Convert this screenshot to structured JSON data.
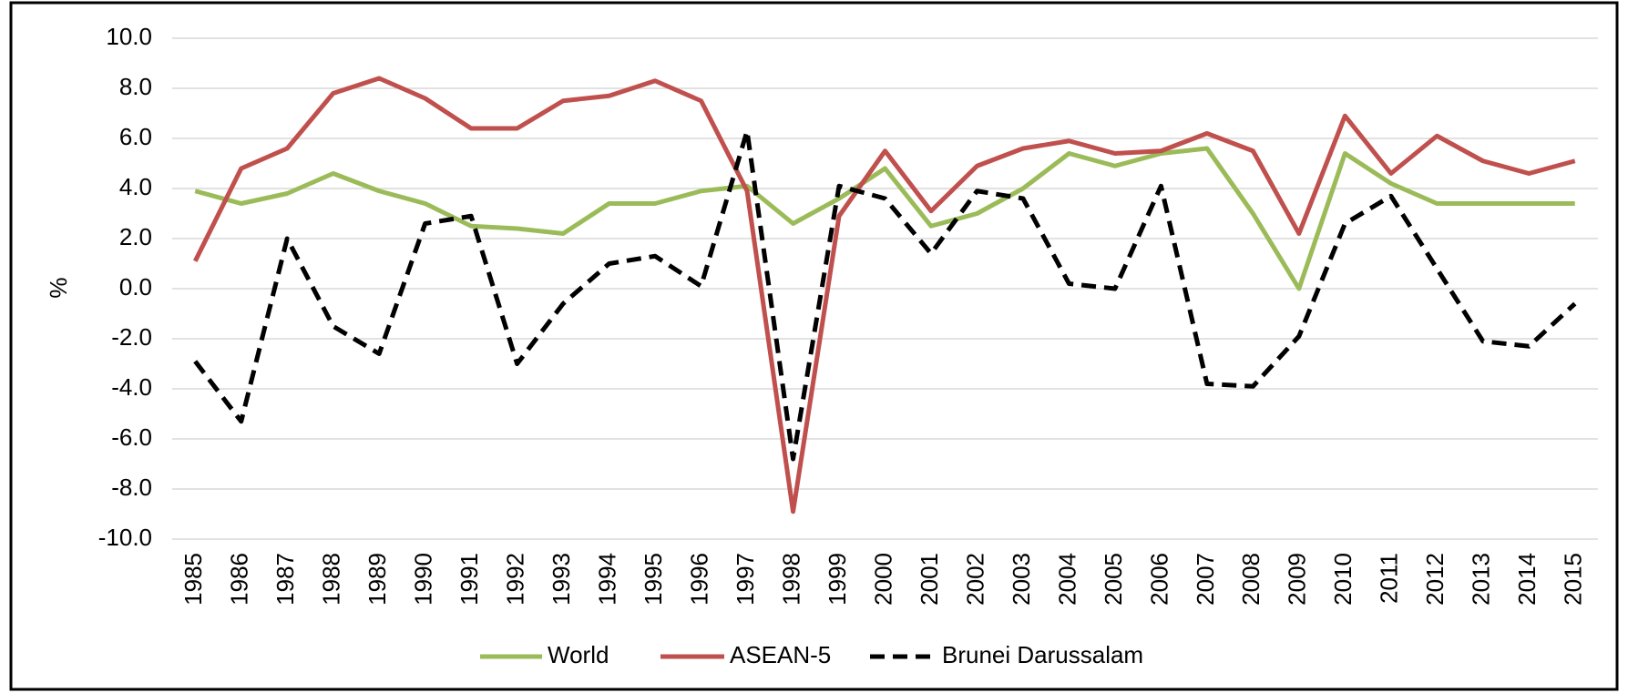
{
  "chart_data": {
    "type": "line",
    "y_label": "%",
    "categories": [
      "1985",
      "1986",
      "1987",
      "1988",
      "1989",
      "1990",
      "1991",
      "1992",
      "1993",
      "1994",
      "1995",
      "1996",
      "1997",
      "1998",
      "1999",
      "2000",
      "2001",
      "2002",
      "2003",
      "2004",
      "2005",
      "2006",
      "2007",
      "2008",
      "2009",
      "2010",
      "2011",
      "2012",
      "2013",
      "2014",
      "2015"
    ],
    "series": [
      {
        "name": "World",
        "color": "#9bbb59",
        "dashed": false,
        "values": [
          3.9,
          3.4,
          3.8,
          4.6,
          3.9,
          3.4,
          2.5,
          2.4,
          2.2,
          3.4,
          3.4,
          3.9,
          4.1,
          2.6,
          3.6,
          4.8,
          2.5,
          3.0,
          4.0,
          5.4,
          4.9,
          5.4,
          5.6,
          3.0,
          0.0,
          5.4,
          4.2,
          3.4,
          3.4,
          3.4,
          3.4
        ]
      },
      {
        "name": "ASEAN-5",
        "color": "#c0504d",
        "dashed": false,
        "values": [
          1.1,
          4.8,
          5.6,
          7.8,
          8.4,
          7.6,
          6.4,
          6.4,
          7.5,
          7.7,
          8.3,
          7.5,
          3.9,
          -8.9,
          2.9,
          5.5,
          3.1,
          4.9,
          5.6,
          5.9,
          5.4,
          5.5,
          6.2,
          5.5,
          2.2,
          6.9,
          4.6,
          6.1,
          5.1,
          4.6,
          5.1
        ]
      },
      {
        "name": "Brunei Darussalam",
        "color": "#000000",
        "dashed": true,
        "values": [
          -2.9,
          -5.3,
          2.0,
          -1.5,
          -2.6,
          2.6,
          2.9,
          -3.0,
          -0.6,
          1.0,
          1.3,
          0.1,
          6.3,
          -6.8,
          4.1,
          3.6,
          1.4,
          3.9,
          3.6,
          0.2,
          0.0,
          4.1,
          -3.8,
          -3.9,
          -1.9,
          2.6,
          3.7,
          0.8,
          -2.1,
          -2.3,
          -0.6
        ]
      }
    ],
    "ylim": [
      -10,
      10
    ],
    "yticks": [
      {
        "value": -10,
        "label": "-10.0"
      },
      {
        "value": -8,
        "label": "-8.0"
      },
      {
        "value": -6,
        "label": "-6.0"
      },
      {
        "value": -4,
        "label": "-4.0"
      },
      {
        "value": -2,
        "label": "-2.0"
      },
      {
        "value": 0,
        "label": "0.0"
      },
      {
        "value": 2,
        "label": "2.0"
      },
      {
        "value": 4,
        "label": "4.0"
      },
      {
        "value": 6,
        "label": "6.0"
      },
      {
        "value": 8,
        "label": "8.0"
      },
      {
        "value": 10,
        "label": "10.0"
      }
    ],
    "grid": true,
    "legend": "bottom"
  }
}
